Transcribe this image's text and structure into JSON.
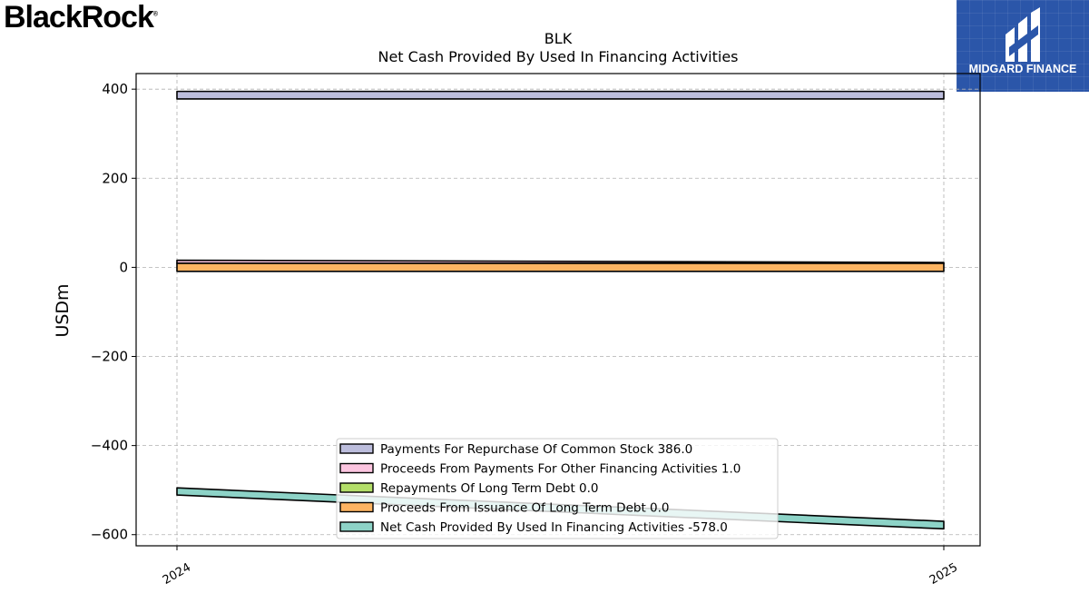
{
  "brand": {
    "logo_text": "BlackRock",
    "logo_mark": "®"
  },
  "badge": {
    "text": "MIDGARD FINANCE",
    "bg_color": "#2b56a9"
  },
  "chart_data": {
    "type": "area",
    "title": "BLK",
    "subtitle": "Net Cash Provided By Used In Financing Activities",
    "xlabel": "",
    "ylabel": "USDm",
    "categories": [
      "2024",
      "2025"
    ],
    "ylim": [
      -625,
      435
    ],
    "yticks": [
      -600,
      -400,
      -200,
      0,
      200,
      400
    ],
    "ytick_labels": [
      "−600",
      "−400",
      "−200",
      "0",
      "200",
      "400"
    ],
    "grid": true,
    "legend_placement": "lower-center",
    "series": [
      {
        "name": "Payments For Repurchase Of Common Stock",
        "legend_value": "386.0",
        "color": "#bcbddc",
        "low": [
          378,
          378
        ],
        "high": [
          395,
          395
        ]
      },
      {
        "name": "Proceeds From Payments For Other Financing Activities",
        "legend_value": "1.0",
        "color": "#fcc5e0",
        "low": [
          9,
          9
        ],
        "high": [
          16,
          11
        ]
      },
      {
        "name": "Repayments Of Long Term Debt",
        "legend_value": "0.0",
        "color": "#b3de69",
        "low": [
          9,
          9
        ],
        "high": [
          9,
          9
        ]
      },
      {
        "name": "Proceeds From Issuance Of Long Term Debt",
        "legend_value": "0.0",
        "color": "#fdb462",
        "low": [
          -9,
          -9
        ],
        "high": [
          9,
          9
        ]
      },
      {
        "name": "Net Cash Provided By Used In Financing Activities",
        "legend_value": "-578.0",
        "color": "#8dd3c7",
        "low": [
          -511,
          -587
        ],
        "high": [
          -495,
          -570
        ]
      }
    ]
  }
}
